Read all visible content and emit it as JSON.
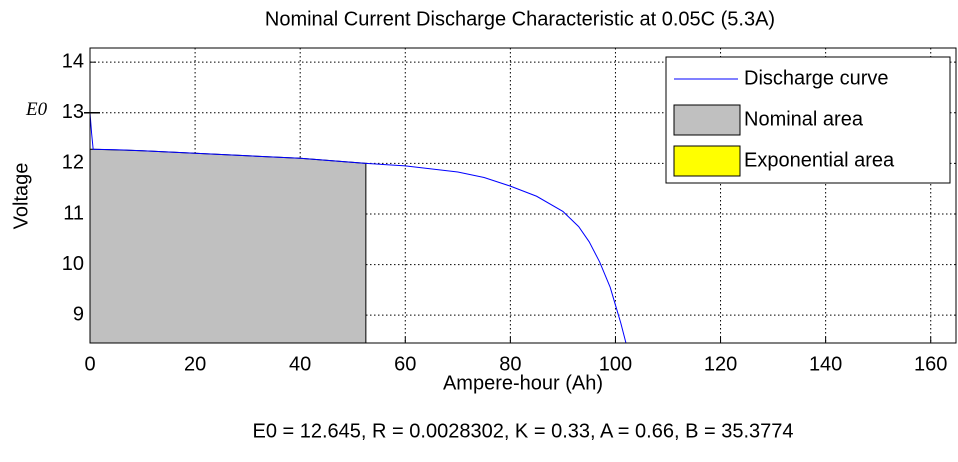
{
  "chart_data": {
    "type": "line",
    "title": "Nominal Current Discharge Characteristic at 0.05C (5.3A)",
    "xlabel": "Ampere-hour (Ah)",
    "ylabel": "Voltage",
    "caption": "E0 = 12.645, R = 0.0028302, K = 0.33, A = 0.66, B = 35.3774",
    "e0_marker": {
      "label": "E0",
      "value": 13
    },
    "xlim": [
      0,
      165
    ],
    "ylim": [
      8.45,
      14.28
    ],
    "xticks": [
      0,
      20,
      40,
      60,
      80,
      100,
      120,
      140,
      160
    ],
    "yticks": [
      9,
      10,
      11,
      12,
      13,
      14
    ],
    "grid": true,
    "legend": "upper right",
    "series": [
      {
        "name": "Discharge curve",
        "kind": "line",
        "color": "#0000ff",
        "x": [
          0,
          0.3,
          0.6,
          5,
          10,
          20,
          30,
          40,
          52.5,
          60,
          70,
          75,
          80,
          85,
          90,
          93,
          95,
          97,
          99,
          100,
          101,
          102
        ],
        "values": [
          13.0,
          12.6,
          12.28,
          12.27,
          12.25,
          12.2,
          12.15,
          12.1,
          12.0,
          11.95,
          11.83,
          11.72,
          11.55,
          11.35,
          11.05,
          10.75,
          10.45,
          10.05,
          9.55,
          9.2,
          8.85,
          8.45
        ]
      },
      {
        "name": "Nominal area",
        "kind": "area",
        "color": "#c0c0c0",
        "x": [
          0,
          0.6,
          10,
          20,
          30,
          40,
          52.5
        ],
        "values": [
          12.28,
          12.28,
          12.25,
          12.2,
          12.15,
          12.1,
          12.0
        ]
      },
      {
        "name": "Exponential area",
        "kind": "area",
        "color": "#ffff00"
      }
    ]
  }
}
